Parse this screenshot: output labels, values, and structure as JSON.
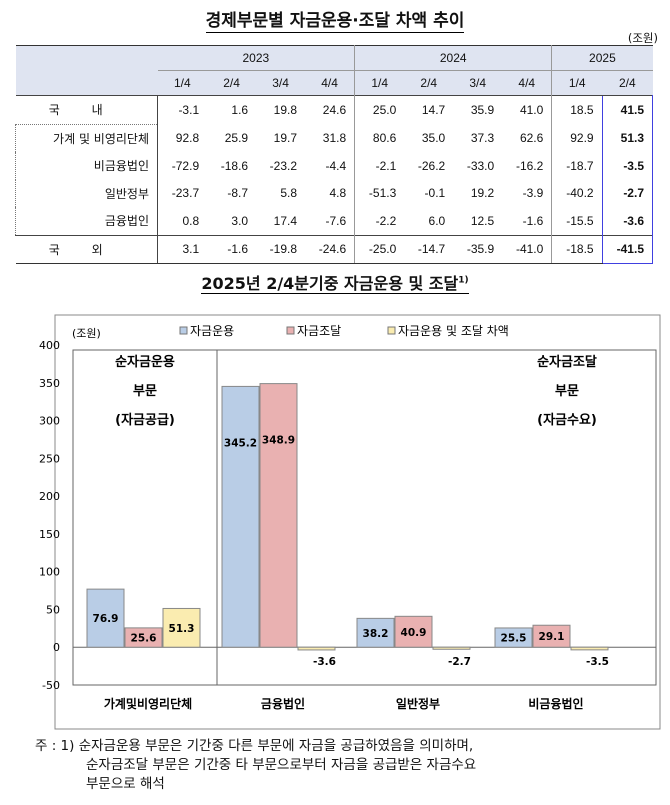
{
  "table": {
    "title": "경제부문별 자금운용·조달 차액 추이",
    "unit": "(조원)",
    "years": [
      "2023",
      "2024",
      "2025"
    ],
    "quarters": [
      "1/4",
      "2/4",
      "3/4",
      "4/4",
      "1/4",
      "2/4",
      "3/4",
      "4/4",
      "1/4",
      "2/4"
    ],
    "rows": [
      {
        "label": "국 내",
        "values": [
          "-3.1",
          "1.6",
          "19.8",
          "24.6",
          "25.0",
          "14.7",
          "35.9",
          "41.0",
          "18.5",
          "41.5"
        ]
      },
      {
        "label": "가계 및 비영리단체",
        "values": [
          "92.8",
          "25.9",
          "19.7",
          "31.8",
          "80.6",
          "35.0",
          "37.3",
          "62.6",
          "92.9",
          "51.3"
        ]
      },
      {
        "label": "비금융법인",
        "values": [
          "-72.9",
          "-18.6",
          "-23.2",
          "-4.4",
          "-2.1",
          "-26.2",
          "-33.0",
          "-16.2",
          "-18.7",
          "-3.5"
        ]
      },
      {
        "label": "일반정부",
        "values": [
          "-23.7",
          "-8.7",
          "5.8",
          "4.8",
          "-51.3",
          "-0.1",
          "19.2",
          "-3.9",
          "-40.2",
          "-2.7"
        ]
      },
      {
        "label": "금융법인",
        "values": [
          "0.8",
          "3.0",
          "17.4",
          "-7.6",
          "-2.2",
          "6.0",
          "12.5",
          "-1.6",
          "-15.5",
          "-3.6"
        ]
      },
      {
        "label": "국 외",
        "values": [
          "3.1",
          "-1.6",
          "-19.8",
          "-24.6",
          "-25.0",
          "-14.7",
          "-35.9",
          "-41.0",
          "-18.5",
          "-41.5"
        ]
      }
    ]
  },
  "chart_data": {
    "type": "bar",
    "title": "2025년 2/4분기중 자금운용 및 조달",
    "title_sup": "1)",
    "ylabel": "(조원)",
    "ylim": [
      -50,
      400
    ],
    "yticks": [
      "-50",
      "0",
      "50",
      "100",
      "150",
      "200",
      "250",
      "300",
      "350",
      "400"
    ],
    "categories": [
      "가계및비영리단체",
      "금융법인",
      "일반정부",
      "비금융법인"
    ],
    "series": [
      {
        "name": "자금운용",
        "color": "#b9cde6",
        "values": [
          76.9,
          345.2,
          38.2,
          25.5
        ],
        "labels": [
          "76.9",
          "345.2",
          "38.2",
          "25.5"
        ]
      },
      {
        "name": "자금조달",
        "color": "#e9b1b1",
        "values": [
          25.6,
          348.9,
          40.9,
          29.1
        ],
        "labels": [
          "25.6",
          "348.9",
          "40.9",
          "29.1"
        ]
      },
      {
        "name": "자금운용 및 조달 차액",
        "color": "#faecb0",
        "values": [
          51.3,
          -3.6,
          -2.7,
          -3.5
        ],
        "labels": [
          "51.3",
          "-3.6",
          "-2.7",
          "-3.5"
        ]
      }
    ],
    "annotations": {
      "left": [
        "순자금운용",
        "부문",
        "(자금공급)"
      ],
      "right": [
        "순자금조달",
        "부문",
        "(자금수요)"
      ]
    },
    "legend": "top"
  },
  "note": {
    "line1": "주 : 1) 순자금운용 부문은 기간중 다른 부문에 자금을 공급하였음을 의미하며,",
    "line2": "순자금조달 부문은 기간중 타 부문으로부터 자금을 공급받은 자금수요",
    "line3": "부문으로 해석"
  }
}
